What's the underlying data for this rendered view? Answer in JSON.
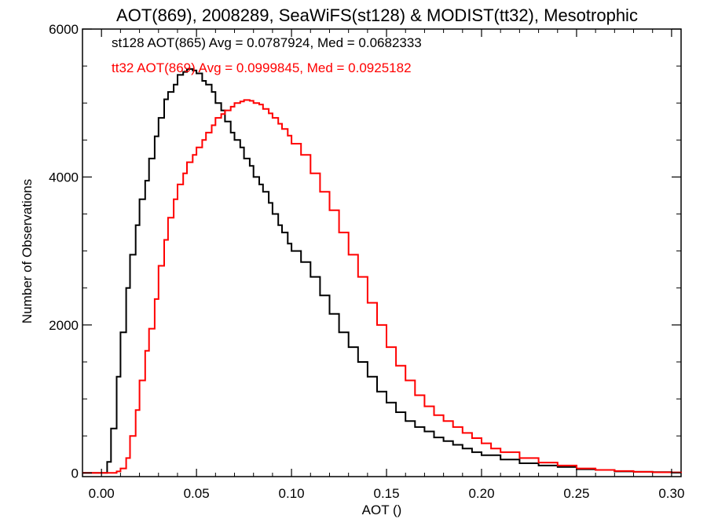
{
  "chart_data": {
    "type": "line",
    "title": "AOT(869), 2008289, SeaWiFS(st128) & MODIST(tt32), Mesotrophic",
    "xlabel": "AOT ()",
    "ylabel": "Number of Observations",
    "xlim": [
      -0.01,
      0.305
    ],
    "ylim": [
      -50,
      6000
    ],
    "x_ticks": [
      0.0,
      0.05,
      0.1,
      0.15,
      0.2,
      0.25,
      0.3
    ],
    "x_tick_labels": [
      "0.00",
      "0.05",
      "0.10",
      "0.15",
      "0.20",
      "0.25",
      "0.30"
    ],
    "y_ticks": [
      0,
      2000,
      4000,
      6000
    ],
    "y_tick_labels": [
      "0",
      "2000",
      "4000",
      "6000"
    ],
    "annotations": [
      {
        "text": "st128 AOT(865) Avg = 0.0787924, Med = 0.0682333",
        "color": "#000000"
      },
      {
        "text": "tt32 AOT(869) Avg = 0.0999845, Med = 0.0925182",
        "color": "#ff0000"
      }
    ],
    "series": [
      {
        "color": "#000000",
        "x": [
          -0.01,
          0.0,
          0.003,
          0.005,
          0.008,
          0.01,
          0.013,
          0.015,
          0.018,
          0.02,
          0.023,
          0.025,
          0.028,
          0.03,
          0.033,
          0.035,
          0.038,
          0.04,
          0.043,
          0.045,
          0.048,
          0.05,
          0.053,
          0.055,
          0.058,
          0.06,
          0.063,
          0.065,
          0.068,
          0.07,
          0.073,
          0.075,
          0.078,
          0.08,
          0.083,
          0.085,
          0.088,
          0.09,
          0.093,
          0.095,
          0.098,
          0.1,
          0.105,
          0.11,
          0.115,
          0.12,
          0.125,
          0.13,
          0.135,
          0.14,
          0.145,
          0.15,
          0.155,
          0.16,
          0.165,
          0.17,
          0.175,
          0.18,
          0.185,
          0.19,
          0.195,
          0.2,
          0.21,
          0.22,
          0.23,
          0.24,
          0.25,
          0.26,
          0.27,
          0.28,
          0.29,
          0.3,
          0.305
        ],
        "values": [
          0,
          0,
          150,
          600,
          1300,
          1900,
          2500,
          2950,
          3350,
          3700,
          3950,
          4250,
          4550,
          4800,
          5050,
          5150,
          5250,
          5380,
          5420,
          5460,
          5440,
          5400,
          5300,
          5250,
          5150,
          5000,
          4900,
          4750,
          4600,
          4500,
          4400,
          4250,
          4150,
          4000,
          3900,
          3800,
          3650,
          3500,
          3350,
          3250,
          3100,
          3000,
          2850,
          2650,
          2400,
          2150,
          1900,
          1700,
          1500,
          1300,
          1100,
          950,
          820,
          700,
          620,
          560,
          480,
          430,
          380,
          330,
          280,
          240,
          180,
          130,
          100,
          80,
          50,
          40,
          20,
          15,
          10,
          5,
          0
        ]
      },
      {
        "color": "#ff0000",
        "x": [
          -0.01,
          0.0,
          0.005,
          0.008,
          0.01,
          0.013,
          0.015,
          0.018,
          0.02,
          0.023,
          0.025,
          0.028,
          0.03,
          0.033,
          0.035,
          0.038,
          0.04,
          0.043,
          0.045,
          0.048,
          0.05,
          0.053,
          0.055,
          0.058,
          0.06,
          0.063,
          0.065,
          0.068,
          0.07,
          0.073,
          0.075,
          0.078,
          0.08,
          0.083,
          0.085,
          0.088,
          0.09,
          0.093,
          0.095,
          0.098,
          0.1,
          0.105,
          0.11,
          0.115,
          0.12,
          0.125,
          0.13,
          0.135,
          0.14,
          0.145,
          0.15,
          0.155,
          0.16,
          0.165,
          0.17,
          0.175,
          0.18,
          0.185,
          0.19,
          0.195,
          0.2,
          0.205,
          0.21,
          0.22,
          0.23,
          0.24,
          0.25,
          0.26,
          0.27,
          0.28,
          0.29,
          0.3,
          0.305
        ],
        "values": [
          0,
          0,
          0,
          20,
          60,
          200,
          500,
          850,
          1250,
          1650,
          1950,
          2350,
          2800,
          3150,
          3450,
          3700,
          3900,
          4050,
          4200,
          4300,
          4400,
          4500,
          4600,
          4700,
          4800,
          4850,
          4900,
          4950,
          5000,
          5020,
          5040,
          5030,
          5000,
          4980,
          4920,
          4860,
          4800,
          4720,
          4650,
          4560,
          4450,
          4300,
          4050,
          3800,
          3550,
          3250,
          2950,
          2650,
          2300,
          2000,
          1700,
          1450,
          1250,
          1050,
          900,
          780,
          700,
          620,
          540,
          470,
          400,
          330,
          280,
          200,
          140,
          100,
          60,
          40,
          25,
          15,
          8,
          5,
          0
        ]
      }
    ]
  }
}
